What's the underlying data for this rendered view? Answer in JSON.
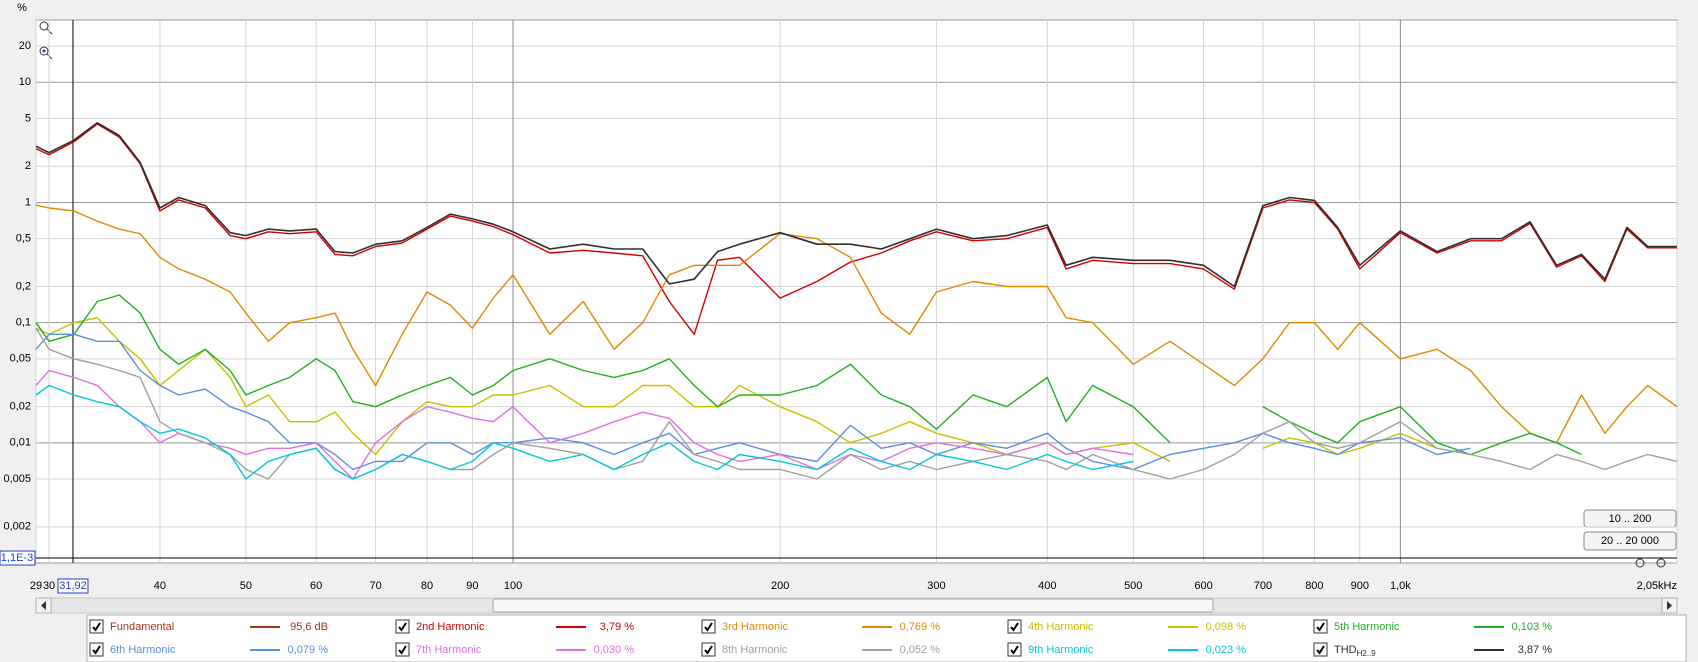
{
  "chart_data": {
    "type": "line",
    "y_unit": "%",
    "log_x": true,
    "log_y": true,
    "grid": true,
    "xlim": [
      29,
      2050
    ],
    "ylim": [
      0.001,
      33
    ],
    "xticks": [
      29,
      30,
      40,
      50,
      60,
      70,
      80,
      90,
      100,
      200,
      300,
      400,
      500,
      600,
      700,
      800,
      900,
      {
        "value": 1000,
        "label": "1,0k"
      },
      {
        "value": 2050,
        "label": "2,05kHz"
      }
    ],
    "yticks": [
      20,
      10,
      5,
      2,
      1,
      {
        "value": 0.5,
        "label": "0,5"
      },
      {
        "value": 0.2,
        "label": "0,2"
      },
      {
        "value": 0.1,
        "label": "0,1"
      },
      {
        "value": 0.05,
        "label": "0,05"
      },
      {
        "value": 0.02,
        "label": "0,02"
      },
      {
        "value": 0.01,
        "label": "0,01"
      },
      {
        "value": 0.005,
        "label": "0,005"
      },
      {
        "value": 0.002,
        "label": "0,002"
      }
    ],
    "cursor": {
      "x": {
        "value": 31.92,
        "label": "31,92"
      },
      "y": {
        "value": 0.0011,
        "label": "1,1E-3"
      }
    },
    "x": [
      29,
      30,
      32,
      34,
      36,
      38,
      40,
      42,
      45,
      48,
      50,
      53,
      56,
      60,
      63,
      66,
      70,
      75,
      80,
      85,
      90,
      95,
      100,
      110,
      120,
      130,
      140,
      150,
      160,
      170,
      180,
      200,
      220,
      240,
      260,
      280,
      300,
      330,
      360,
      400,
      420,
      450,
      500,
      550,
      600,
      650,
      700,
      750,
      800,
      850,
      900,
      1000,
      1100,
      1200,
      1300,
      1400,
      1500,
      1600,
      1700,
      1800,
      1900,
      2050
    ],
    "series": [
      {
        "name": "Fundamental",
        "color": "#a8321e",
        "readout": "95,6 dB"
      },
      {
        "name": "2nd Harmonic",
        "color": "#d00000",
        "readout": "3,79 %",
        "values": [
          2.8,
          2.5,
          3.2,
          4.5,
          3.5,
          2.1,
          0.85,
          1.05,
          0.9,
          0.53,
          0.5,
          0.57,
          0.55,
          0.57,
          0.37,
          0.36,
          0.43,
          0.46,
          0.6,
          0.77,
          0.7,
          0.63,
          0.54,
          0.38,
          0.4,
          0.38,
          0.36,
          0.15,
          0.08,
          0.33,
          0.35,
          0.16,
          0.22,
          0.32,
          0.38,
          0.48,
          0.57,
          0.48,
          0.5,
          0.62,
          0.28,
          0.33,
          0.31,
          0.31,
          0.28,
          0.19,
          0.9,
          1.05,
          1.0,
          0.6,
          0.28,
          0.56,
          0.38,
          0.48,
          0.48,
          0.67,
          0.29,
          0.36,
          0.22,
          0.6,
          0.42,
          0.42
        ]
      },
      {
        "name": "3rd Harmonic",
        "color": "#e08a00",
        "readout": "0,769 %",
        "values": [
          0.95,
          0.9,
          0.85,
          0.7,
          0.6,
          0.55,
          0.35,
          0.28,
          0.23,
          0.18,
          0.12,
          0.07,
          0.1,
          0.11,
          0.12,
          0.06,
          0.03,
          0.08,
          0.18,
          0.14,
          0.09,
          0.16,
          0.25,
          0.08,
          0.15,
          0.06,
          0.1,
          0.25,
          0.3,
          0.3,
          0.3,
          0.55,
          0.5,
          0.35,
          0.12,
          0.08,
          0.18,
          0.22,
          0.2,
          0.2,
          0.11,
          0.1,
          0.045,
          0.07,
          0.045,
          0.03,
          0.05,
          0.1,
          0.1,
          0.06,
          0.1,
          0.05,
          0.06,
          0.04,
          0.02,
          0.012,
          0.01,
          0.025,
          0.012,
          0.02,
          0.03,
          0.02
        ]
      },
      {
        "name": "4th Harmonic",
        "color": "#c8c000",
        "readout": "0,098 %",
        "values": [
          0.09,
          0.08,
          0.1,
          0.11,
          0.07,
          0.05,
          0.03,
          0.04,
          0.06,
          0.035,
          0.02,
          0.025,
          0.015,
          0.015,
          0.018,
          0.012,
          0.008,
          0.015,
          0.022,
          0.02,
          0.02,
          0.025,
          0.025,
          0.03,
          0.02,
          0.02,
          0.03,
          0.03,
          0.02,
          0.02,
          0.03,
          0.02,
          0.015,
          0.01,
          0.012,
          0.015,
          0.012,
          0.01,
          0.008,
          0.01,
          0.008,
          0.009,
          0.01,
          0.007,
          null,
          null,
          0.009,
          0.011,
          0.01,
          0.008,
          0.009,
          0.012,
          0.009,
          null,
          null,
          null,
          null,
          null,
          null,
          null,
          null,
          null
        ]
      },
      {
        "name": "5th Harmonic",
        "color": "#20b020",
        "readout": "0,103 %",
        "values": [
          0.1,
          0.07,
          0.08,
          0.15,
          0.17,
          0.12,
          0.06,
          0.045,
          0.06,
          0.04,
          0.025,
          0.03,
          0.035,
          0.05,
          0.04,
          0.022,
          0.02,
          0.025,
          0.03,
          0.035,
          0.025,
          0.03,
          0.04,
          0.05,
          0.04,
          0.035,
          0.04,
          0.05,
          0.03,
          0.02,
          0.025,
          0.025,
          0.03,
          0.045,
          0.025,
          0.02,
          0.013,
          0.025,
          0.02,
          0.035,
          0.015,
          0.03,
          0.02,
          0.01,
          null,
          null,
          0.02,
          0.015,
          0.012,
          0.01,
          0.015,
          0.02,
          0.01,
          0.008,
          0.01,
          0.012,
          0.01,
          0.008,
          null,
          null,
          null,
          null
        ]
      },
      {
        "name": "6th Harmonic",
        "color": "#5a8ee0",
        "readout": "0,079 %",
        "values": [
          0.06,
          0.08,
          0.08,
          0.07,
          0.07,
          0.04,
          0.03,
          0.025,
          0.028,
          0.02,
          0.018,
          0.015,
          0.01,
          0.01,
          0.008,
          0.006,
          0.007,
          0.007,
          0.01,
          0.01,
          0.008,
          0.01,
          0.01,
          0.011,
          0.01,
          0.008,
          0.01,
          0.012,
          0.008,
          0.009,
          0.01,
          0.008,
          0.007,
          0.014,
          0.009,
          0.01,
          0.008,
          0.01,
          0.009,
          0.012,
          0.009,
          0.007,
          0.006,
          0.008,
          0.009,
          0.01,
          0.012,
          0.01,
          0.009,
          0.008,
          0.01,
          0.011,
          0.008,
          0.009,
          null,
          null,
          null,
          null,
          null,
          null,
          null,
          null
        ]
      },
      {
        "name": "7th Harmonic",
        "color": "#e070e0",
        "readout": "0,030 %",
        "values": [
          0.03,
          0.04,
          0.035,
          0.03,
          0.02,
          0.015,
          0.01,
          0.012,
          0.01,
          0.009,
          0.008,
          0.009,
          0.009,
          0.01,
          0.007,
          0.005,
          0.01,
          0.015,
          0.02,
          0.018,
          0.016,
          0.015,
          0.02,
          0.01,
          0.012,
          0.015,
          0.018,
          0.016,
          0.01,
          0.008,
          0.007,
          0.008,
          0.006,
          0.008,
          0.007,
          0.009,
          0.01,
          0.009,
          0.008,
          0.01,
          0.008,
          0.009,
          0.008,
          null,
          null,
          null,
          null,
          null,
          null,
          null,
          null,
          null,
          null,
          null,
          null,
          null,
          null,
          null,
          null,
          null,
          null,
          null
        ]
      },
      {
        "name": "8th Harmonic",
        "color": "#a0a0a0",
        "readout": "0,052 %",
        "values": [
          0.09,
          0.06,
          0.05,
          0.045,
          0.04,
          0.035,
          0.015,
          0.012,
          0.01,
          0.008,
          0.006,
          0.005,
          0.008,
          0.009,
          0.006,
          0.005,
          0.006,
          0.008,
          0.007,
          0.006,
          0.006,
          0.008,
          0.01,
          0.009,
          0.008,
          0.006,
          0.007,
          0.015,
          0.008,
          0.007,
          0.006,
          0.006,
          0.005,
          0.008,
          0.006,
          0.007,
          0.006,
          0.007,
          0.008,
          0.007,
          0.006,
          0.008,
          0.006,
          0.005,
          0.006,
          0.008,
          0.012,
          0.015,
          0.01,
          0.009,
          0.01,
          0.015,
          0.009,
          0.008,
          0.007,
          0.006,
          0.008,
          0.007,
          0.006,
          0.007,
          0.008,
          0.007
        ]
      },
      {
        "name": "9th Harmonic",
        "color": "#00c8d8",
        "readout": "0,023 %",
        "values": [
          0.025,
          0.03,
          0.025,
          0.022,
          0.02,
          0.015,
          0.012,
          0.013,
          0.011,
          0.008,
          0.005,
          0.007,
          0.008,
          0.009,
          0.006,
          0.005,
          0.006,
          0.008,
          0.007,
          0.006,
          0.007,
          0.01,
          0.009,
          0.007,
          0.008,
          0.006,
          0.008,
          0.01,
          0.007,
          0.006,
          0.008,
          0.007,
          0.006,
          0.009,
          0.007,
          0.006,
          0.008,
          0.007,
          0.006,
          0.008,
          0.007,
          0.006,
          0.007,
          null,
          null,
          null,
          null,
          null,
          null,
          null,
          null,
          null,
          null,
          null,
          null,
          null,
          null,
          null,
          null,
          null,
          null,
          null
        ]
      },
      {
        "name": "THD",
        "name_sub": "H2..9",
        "color": "#303030",
        "readout": "3,87 %",
        "values": [
          2.94,
          2.6,
          3.3,
          4.6,
          3.6,
          2.15,
          0.9,
          1.1,
          0.94,
          0.56,
          0.53,
          0.6,
          0.58,
          0.6,
          0.39,
          0.38,
          0.45,
          0.48,
          0.62,
          0.8,
          0.73,
          0.66,
          0.57,
          0.41,
          0.45,
          0.41,
          0.41,
          0.21,
          0.23,
          0.39,
          0.45,
          0.56,
          0.45,
          0.45,
          0.41,
          0.5,
          0.6,
          0.5,
          0.53,
          0.65,
          0.3,
          0.35,
          0.33,
          0.33,
          0.3,
          0.2,
          0.94,
          1.1,
          1.04,
          0.62,
          0.3,
          0.58,
          0.39,
          0.5,
          0.5,
          0.69,
          0.3,
          0.37,
          0.23,
          0.62,
          0.43,
          0.43
        ]
      }
    ]
  },
  "controls": {
    "buttons": [
      "10 .. 200",
      "20 .. 20 000"
    ]
  }
}
